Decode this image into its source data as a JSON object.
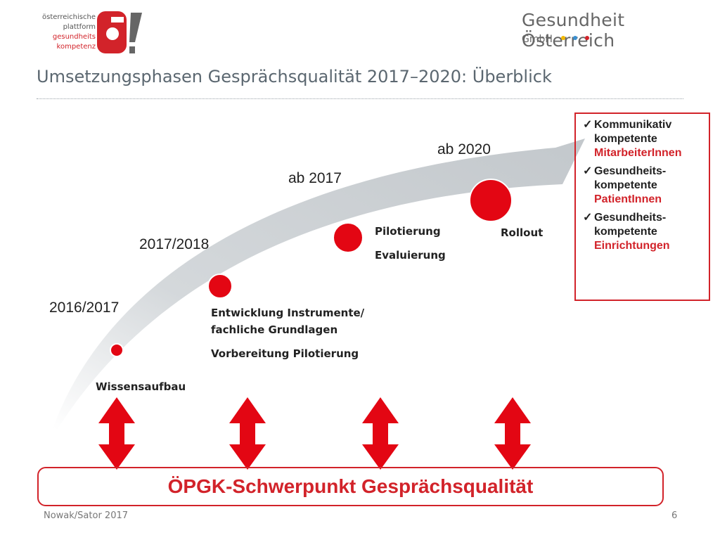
{
  "header": {
    "logo_lines": [
      "österreichische",
      "plattform",
      "gesundheits",
      "kompetenz"
    ],
    "brand_name": "Gesundheit Österreich",
    "brand_sub": "GmbH",
    "brand_dot_colors": [
      "#f2b800",
      "#3a8fd0",
      "#d2232a"
    ]
  },
  "title": "Umsetzungsphasen Gesprächsqualität 2017–2020: Überblick",
  "timeline": {
    "milestones": [
      {
        "year": "2016/2017",
        "phases": [
          "Wissensaufbau"
        ]
      },
      {
        "year": "2017/2018",
        "phases": [
          "Entwicklung Instrumente/",
          "fachliche Grundlagen",
          "Vorbereitung Pilotierung"
        ]
      },
      {
        "year": "ab 2017",
        "phases": [
          "Pilotierung",
          "Evaluierung"
        ]
      },
      {
        "year": "ab 2020",
        "phases": [
          "Rollout"
        ]
      }
    ]
  },
  "goals": [
    {
      "check": "✓",
      "line1": "Kommunikativ",
      "line2": "kompetente",
      "highlight": "MitarbeiterInnen"
    },
    {
      "check": "✓",
      "line1": "Gesundheits-",
      "line2": "kompetente",
      "highlight": "PatientInnen"
    },
    {
      "check": "✓",
      "line1": "Gesundheits-",
      "line2": "kompetente",
      "highlight": "Einrichtungen"
    }
  ],
  "banner": "ÖPGK-Schwerpunkt Gesprächsqualität",
  "footer": {
    "author": "Nowak/Sator 2017",
    "page": "6"
  },
  "colors": {
    "accent": "#d2232a",
    "arc": "#c9cdd0",
    "text_gray": "#5b6770"
  }
}
